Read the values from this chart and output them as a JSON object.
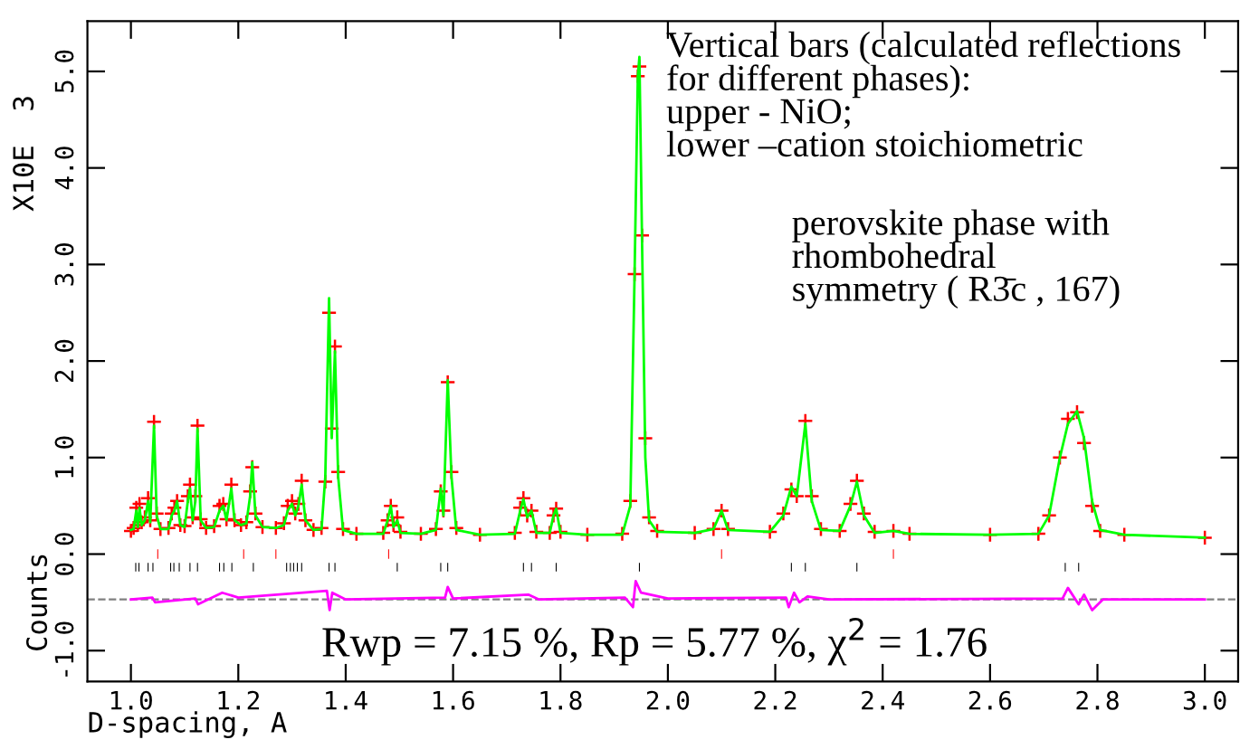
{
  "chart_data": {
    "type": "line",
    "xlabel": "D-spacing, A",
    "ylabel": "X10E  3",
    "xlim": [
      0.919,
      3.062
    ],
    "ylim": [
      -1.32,
      5.52
    ],
    "xticks": [
      {
        "value": 1,
        "label": "1.0"
      },
      1.2,
      1.4,
      1.6,
      1.8,
      {
        "value": 2,
        "label": "2.0"
      },
      2.2,
      2.4,
      2.6,
      2.8,
      {
        "value": 3,
        "label": "3.0"
      }
    ],
    "yticks": [
      {
        "value": -1,
        "label": "-1.0"
      },
      {
        "value": 0,
        "label": "0.0"
      },
      {
        "value": 1,
        "label": "1.0"
      },
      {
        "value": 2,
        "label": "2.0"
      },
      {
        "value": 3,
        "label": "3.0"
      },
      {
        "value": 4,
        "label": "4.0"
      },
      {
        "value": 5,
        "label": "5.0"
      }
    ],
    "grid": false,
    "annotations": [
      "Counts",
      "Vertical bars (calculated reflections\nfor different phases):\nupper - NiO;\nlower –cation stoichiometric",
      "perovskite phase with\nrhombohedral\nsymmetry ( R3̄c , 167)",
      "Rwp = 7.15 %, Rp = 5.77 %, χ$^{2}$ = 1.76"
    ],
    "ref_lines": [
      {
        "axis": "y",
        "value": -0.47,
        "color": "#808080",
        "line_style": "dashed"
      }
    ],
    "series": [
      {
        "type": "scatter",
        "color": "#ff0000",
        "marker": "cross",
        "x": [
          1.0,
          1.005,
          1.01,
          1.013,
          1.016,
          1.02,
          1.026,
          1.032,
          1.036,
          1.043,
          1.048,
          1.055,
          1.07,
          1.076,
          1.081,
          1.086,
          1.092,
          1.1,
          1.106,
          1.11,
          1.115,
          1.12,
          1.124,
          1.13,
          1.14,
          1.155,
          1.165,
          1.172,
          1.178,
          1.187,
          1.193,
          1.205,
          1.215,
          1.222,
          1.226,
          1.232,
          1.245,
          1.27,
          1.285,
          1.292,
          1.3,
          1.306,
          1.312,
          1.318,
          1.325,
          1.34,
          1.355,
          1.362,
          1.369,
          1.374,
          1.38,
          1.386,
          1.395,
          1.42,
          1.47,
          1.478,
          1.484,
          1.489,
          1.496,
          1.502,
          1.54,
          1.568,
          1.577,
          1.582,
          1.59,
          1.597,
          1.606,
          1.65,
          1.715,
          1.725,
          1.731,
          1.738,
          1.746,
          1.755,
          1.78,
          1.787,
          1.792,
          1.8,
          1.85,
          1.915,
          1.93,
          1.938,
          1.944,
          1.947,
          1.952,
          1.958,
          1.965,
          1.98,
          2.05,
          2.085,
          2.1,
          2.112,
          2.19,
          2.215,
          2.23,
          2.24,
          2.256,
          2.268,
          2.285,
          2.32,
          2.34,
          2.352,
          2.365,
          2.385,
          2.42,
          2.45,
          2.6,
          2.69,
          2.71,
          2.73,
          2.745,
          2.762,
          2.775,
          2.79,
          2.805,
          2.85,
          3.0
        ],
        "values": [
          0.24,
          0.27,
          0.48,
          0.3,
          0.52,
          0.33,
          0.38,
          0.58,
          0.35,
          1.37,
          0.42,
          0.26,
          0.27,
          0.42,
          0.48,
          0.55,
          0.3,
          0.29,
          0.6,
          0.72,
          0.38,
          0.6,
          1.33,
          0.36,
          0.27,
          0.29,
          0.5,
          0.52,
          0.36,
          0.72,
          0.35,
          0.3,
          0.33,
          0.65,
          0.9,
          0.42,
          0.28,
          0.27,
          0.32,
          0.5,
          0.55,
          0.42,
          0.52,
          0.76,
          0.35,
          0.25,
          0.27,
          0.75,
          2.5,
          1.3,
          2.15,
          0.85,
          0.26,
          0.21,
          0.22,
          0.35,
          0.5,
          0.3,
          0.38,
          0.23,
          0.21,
          0.26,
          0.65,
          0.45,
          1.78,
          0.85,
          0.27,
          0.2,
          0.22,
          0.48,
          0.58,
          0.4,
          0.45,
          0.23,
          0.22,
          0.4,
          0.47,
          0.23,
          0.2,
          0.21,
          0.55,
          2.9,
          4.95,
          5.05,
          3.3,
          1.2,
          0.38,
          0.24,
          0.22,
          0.26,
          0.45,
          0.26,
          0.23,
          0.42,
          0.67,
          0.6,
          1.38,
          0.6,
          0.26,
          0.24,
          0.52,
          0.76,
          0.42,
          0.23,
          0.24,
          0.21,
          0.2,
          0.21,
          0.4,
          1.0,
          1.4,
          1.47,
          1.15,
          0.5,
          0.24,
          0.2,
          0.17
        ]
      },
      {
        "color": "#00ff00",
        "x": [
          1.0,
          1.005,
          1.01,
          1.013,
          1.016,
          1.02,
          1.026,
          1.032,
          1.036,
          1.043,
          1.048,
          1.055,
          1.07,
          1.076,
          1.081,
          1.086,
          1.092,
          1.1,
          1.106,
          1.11,
          1.115,
          1.12,
          1.124,
          1.13,
          1.14,
          1.155,
          1.165,
          1.172,
          1.178,
          1.187,
          1.193,
          1.205,
          1.215,
          1.222,
          1.226,
          1.232,
          1.245,
          1.27,
          1.285,
          1.292,
          1.3,
          1.306,
          1.312,
          1.318,
          1.325,
          1.34,
          1.355,
          1.362,
          1.369,
          1.374,
          1.38,
          1.386,
          1.395,
          1.42,
          1.47,
          1.478,
          1.484,
          1.489,
          1.496,
          1.502,
          1.54,
          1.568,
          1.577,
          1.582,
          1.59,
          1.597,
          1.606,
          1.65,
          1.715,
          1.725,
          1.731,
          1.738,
          1.746,
          1.755,
          1.78,
          1.787,
          1.792,
          1.8,
          1.85,
          1.915,
          1.93,
          1.938,
          1.944,
          1.947,
          1.952,
          1.958,
          1.965,
          1.98,
          2.05,
          2.085,
          2.1,
          2.112,
          2.19,
          2.215,
          2.23,
          2.24,
          2.256,
          2.268,
          2.285,
          2.32,
          2.34,
          2.352,
          2.365,
          2.385,
          2.42,
          2.45,
          2.6,
          2.69,
          2.71,
          2.73,
          2.745,
          2.762,
          2.775,
          2.79,
          2.805,
          2.85,
          3.0
        ],
        "values": [
          0.25,
          0.26,
          0.45,
          0.28,
          0.48,
          0.3,
          0.35,
          0.55,
          0.33,
          1.33,
          0.4,
          0.26,
          0.26,
          0.4,
          0.45,
          0.55,
          0.3,
          0.28,
          0.55,
          0.68,
          0.35,
          0.55,
          1.3,
          0.35,
          0.27,
          0.28,
          0.45,
          0.5,
          0.35,
          0.68,
          0.35,
          0.3,
          0.32,
          0.6,
          0.95,
          0.4,
          0.28,
          0.27,
          0.3,
          0.45,
          0.52,
          0.4,
          0.5,
          0.72,
          0.35,
          0.25,
          0.26,
          0.8,
          2.65,
          1.2,
          2.1,
          0.8,
          0.25,
          0.21,
          0.21,
          0.35,
          0.5,
          0.28,
          0.35,
          0.22,
          0.21,
          0.25,
          0.68,
          0.4,
          1.8,
          0.8,
          0.25,
          0.2,
          0.21,
          0.45,
          0.57,
          0.38,
          0.45,
          0.22,
          0.22,
          0.4,
          0.47,
          0.22,
          0.2,
          0.2,
          0.5,
          2.9,
          4.95,
          5.15,
          3.2,
          1.0,
          0.35,
          0.23,
          0.22,
          0.26,
          0.45,
          0.25,
          0.23,
          0.4,
          0.7,
          0.6,
          1.35,
          0.55,
          0.25,
          0.24,
          0.5,
          0.75,
          0.4,
          0.22,
          0.24,
          0.21,
          0.2,
          0.21,
          0.4,
          1.0,
          1.35,
          1.48,
          1.2,
          0.55,
          0.25,
          0.2,
          0.17
        ]
      },
      {
        "type": "line",
        "color": "#ff00ff",
        "x": [
          1.0,
          1.04,
          1.045,
          1.12,
          1.125,
          1.17,
          1.2,
          1.365,
          1.37,
          1.375,
          1.4,
          1.585,
          1.59,
          1.6,
          1.74,
          1.76,
          1.92,
          1.935,
          1.94,
          1.95,
          2.0,
          2.22,
          2.225,
          2.235,
          2.245,
          2.26,
          2.3,
          2.735,
          2.745,
          2.765,
          2.775,
          2.79,
          2.81,
          3.0
        ],
        "values": [
          -0.47,
          -0.45,
          -0.5,
          -0.46,
          -0.52,
          -0.4,
          -0.45,
          -0.38,
          -0.58,
          -0.4,
          -0.47,
          -0.45,
          -0.34,
          -0.46,
          -0.42,
          -0.47,
          -0.45,
          -0.55,
          -0.28,
          -0.4,
          -0.46,
          -0.45,
          -0.55,
          -0.4,
          -0.5,
          -0.44,
          -0.47,
          -0.46,
          -0.35,
          -0.52,
          -0.42,
          -0.58,
          -0.47,
          -0.47
        ]
      },
      {
        "type": "bar",
        "color": "#ff0000",
        "x": [
          1.05,
          1.21,
          1.27,
          1.48,
          2.1,
          2.42
        ],
        "base": [
          -0.05,
          -0.05,
          -0.05,
          -0.05,
          -0.05,
          -0.05
        ],
        "values": [
          0.1,
          0.1,
          0.1,
          0.1,
          0.1,
          0.1
        ]
      },
      {
        "type": "bar",
        "color": "#000000",
        "x": [
          1.009,
          1.015,
          1.032,
          1.041,
          1.074,
          1.08,
          1.09,
          1.11,
          1.124,
          1.165,
          1.173,
          1.188,
          1.228,
          1.29,
          1.297,
          1.303,
          1.31,
          1.318,
          1.369,
          1.38,
          1.496,
          1.577,
          1.59,
          1.731,
          1.746,
          1.792,
          1.947,
          2.23,
          2.256,
          2.352,
          2.74,
          2.765
        ],
        "base": [
          -0.18,
          -0.18,
          -0.18,
          -0.18,
          -0.18,
          -0.18,
          -0.18,
          -0.18,
          -0.18,
          -0.18,
          -0.18,
          -0.18,
          -0.18,
          -0.18,
          -0.18,
          -0.18,
          -0.18,
          -0.18,
          -0.18,
          -0.18,
          -0.18,
          -0.18,
          -0.18,
          -0.18,
          -0.18,
          -0.18,
          -0.18,
          -0.18,
          -0.18,
          -0.18,
          -0.18,
          -0.18
        ],
        "values": [
          0.09,
          0.09,
          0.09,
          0.09,
          0.09,
          0.09,
          0.09,
          0.09,
          0.09,
          0.09,
          0.09,
          0.09,
          0.09,
          0.09,
          0.09,
          0.09,
          0.09,
          0.09,
          0.09,
          0.09,
          0.09,
          0.09,
          0.09,
          0.09,
          0.09,
          0.09,
          0.09,
          0.09,
          0.09,
          0.09,
          0.09,
          0.09
        ]
      }
    ]
  }
}
